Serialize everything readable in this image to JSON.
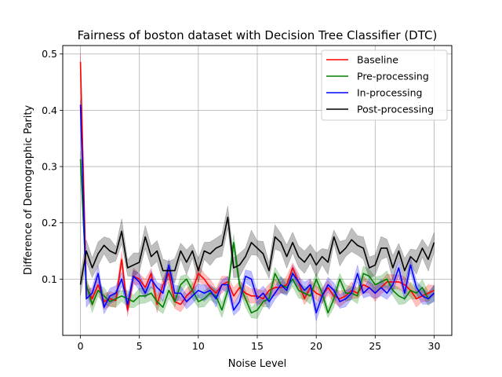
{
  "chart_data": {
    "type": "line",
    "title": "Fairness of boston dataset with Decision Tree Classifier (DTC)",
    "xlabel": "Noise Level",
    "ylabel": "Difference of Demographic Parity",
    "xlim": [
      -1.5,
      31.5
    ],
    "ylim": [
      0.0,
      0.515
    ],
    "xticks": [
      0,
      5,
      10,
      15,
      20,
      25,
      30
    ],
    "yticks": [
      0.1,
      0.2,
      0.3,
      0.4,
      0.5
    ],
    "ytick_labels": [
      "0.1",
      "0.2",
      "0.3",
      "0.4",
      "0.5"
    ],
    "grid": true,
    "legend_position": "top-right",
    "x": [
      0,
      0.5,
      1,
      1.5,
      2,
      2.5,
      3,
      3.5,
      4,
      4.5,
      5,
      5.5,
      6,
      6.5,
      7,
      7.5,
      8,
      8.5,
      9,
      9.5,
      10,
      10.5,
      11,
      11.5,
      12,
      12.5,
      13,
      13.5,
      14,
      14.5,
      15,
      15.5,
      16,
      16.5,
      17,
      17.5,
      18,
      18.5,
      19,
      19.5,
      20,
      20.5,
      21,
      21.5,
      22,
      22.5,
      23,
      23.5,
      24,
      24.5,
      25,
      25.5,
      26,
      26.5,
      27,
      27.5,
      28,
      28.5,
      29,
      29.5,
      30
    ],
    "series": [
      {
        "name": "Baseline",
        "color": "#ff0000",
        "values": [
          0.486,
          0.085,
          0.065,
          0.09,
          0.06,
          0.065,
          0.062,
          0.135,
          0.045,
          0.105,
          0.1,
          0.085,
          0.11,
          0.055,
          0.09,
          0.11,
          0.06,
          0.055,
          0.07,
          0.08,
          0.11,
          0.1,
          0.085,
          0.075,
          0.09,
          0.095,
          0.07,
          0.085,
          0.075,
          0.07,
          0.07,
          0.065,
          0.08,
          0.085,
          0.085,
          0.09,
          0.12,
          0.095,
          0.065,
          0.085,
          0.075,
          0.07,
          0.085,
          0.07,
          0.065,
          0.07,
          0.08,
          0.075,
          0.09,
          0.085,
          0.075,
          0.085,
          0.095,
          0.095,
          0.095,
          0.09,
          0.08,
          0.065,
          0.07,
          0.075,
          0.08
        ]
      },
      {
        "name": "Pre-processing",
        "color": "#008000",
        "values": [
          0.313,
          0.09,
          0.055,
          0.08,
          0.07,
          0.06,
          0.065,
          0.07,
          0.065,
          0.06,
          0.07,
          0.07,
          0.075,
          0.06,
          0.05,
          0.08,
          0.06,
          0.09,
          0.1,
          0.08,
          0.06,
          0.065,
          0.075,
          0.07,
          0.045,
          0.08,
          0.165,
          0.09,
          0.065,
          0.04,
          0.045,
          0.06,
          0.065,
          0.11,
          0.09,
          0.085,
          0.1,
          0.08,
          0.075,
          0.07,
          0.1,
          0.075,
          0.04,
          0.065,
          0.1,
          0.075,
          0.075,
          0.07,
          0.11,
          0.105,
          0.09,
          0.095,
          0.1,
          0.08,
          0.07,
          0.065,
          0.08,
          0.075,
          0.085,
          0.065,
          0.075
        ]
      },
      {
        "name": "In-processing",
        "color": "#0000ff",
        "values": [
          0.41,
          0.065,
          0.075,
          0.11,
          0.05,
          0.07,
          0.075,
          0.1,
          0.055,
          0.105,
          0.095,
          0.075,
          0.1,
          0.085,
          0.075,
          0.125,
          0.075,
          0.075,
          0.06,
          0.07,
          0.08,
          0.075,
          0.08,
          0.065,
          0.09,
          0.09,
          0.045,
          0.06,
          0.105,
          0.1,
          0.065,
          0.075,
          0.06,
          0.075,
          0.09,
          0.08,
          0.11,
          0.095,
          0.08,
          0.09,
          0.04,
          0.07,
          0.09,
          0.08,
          0.06,
          0.065,
          0.075,
          0.11,
          0.075,
          0.085,
          0.075,
          0.085,
          0.075,
          0.09,
          0.12,
          0.075,
          0.125,
          0.085,
          0.07,
          0.065,
          0.075
        ]
      },
      {
        "name": "Post-processing",
        "color": "#000000",
        "values": [
          0.09,
          0.15,
          0.12,
          0.145,
          0.16,
          0.15,
          0.145,
          0.185,
          0.12,
          0.125,
          0.13,
          0.175,
          0.14,
          0.15,
          0.115,
          0.115,
          0.115,
          0.15,
          0.13,
          0.15,
          0.115,
          0.15,
          0.145,
          0.155,
          0.16,
          0.21,
          0.12,
          0.125,
          0.14,
          0.165,
          0.155,
          0.145,
          0.115,
          0.175,
          0.165,
          0.14,
          0.165,
          0.14,
          0.13,
          0.145,
          0.125,
          0.14,
          0.13,
          0.175,
          0.145,
          0.155,
          0.17,
          0.16,
          0.155,
          0.12,
          0.125,
          0.155,
          0.155,
          0.12,
          0.15,
          0.115,
          0.14,
          0.13,
          0.155,
          0.135,
          0.165
        ]
      }
    ]
  }
}
